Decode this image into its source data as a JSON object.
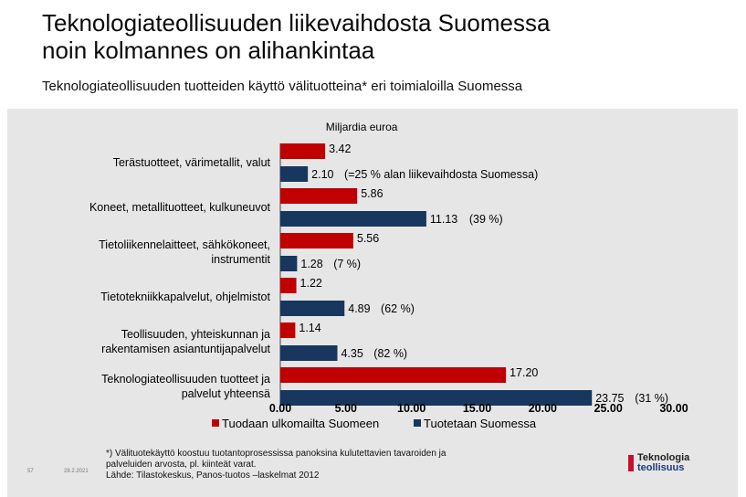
{
  "header": {
    "title_line1": "Teknologiateollisuuden liikevaihdosta Suomessa",
    "title_line2": "noin kolmannes on alihankintaa",
    "subtitle": "Teknologiateollisuuden tuotteiden käyttö välituotteina* eri toimialoilla Suomessa"
  },
  "chart_data": {
    "type": "bar",
    "orientation": "horizontal",
    "title": "Miljardia euroa",
    "categories": [
      [
        "Terästuotteet, värimetallit, valut"
      ],
      [
        "Koneet, metallituotteet, kulkuneuvot"
      ],
      [
        "Tietoliikennelaitteet, sähkökoneet,",
        "instrumentit"
      ],
      [
        "Tietotekniikkapalvelut, ohjelmistot"
      ],
      [
        "Teollisuuden, yhteiskunnan ja",
        "rakentamisen asiantuntijapalvelut"
      ],
      [
        "Teknologiateollisuuden tuotteet ja",
        "palvelut yhteensä"
      ]
    ],
    "series": [
      {
        "name": "Tuodaan ulkomailta Suomeen",
        "color": "#c00000",
        "values": [
          3.42,
          5.86,
          5.56,
          1.22,
          1.14,
          17.2
        ],
        "labels": [
          "3.42",
          "5.86",
          "5.56",
          "1.22",
          "1.14",
          "17.20"
        ]
      },
      {
        "name": "Tuotetaan Suomessa",
        "color": "#17375e",
        "values": [
          2.1,
          11.13,
          1.28,
          4.89,
          4.35,
          23.75
        ],
        "labels": [
          "2.10",
          "11.13",
          "1.28",
          "4.89",
          "4.35",
          "23.75"
        ],
        "annotations": [
          "(=25 % alan liikevaihdosta Suomessa)",
          "(39 %)",
          "(7 %)",
          "(62 %)",
          "(82 %)",
          "(31 %)"
        ]
      }
    ],
    "xlim": [
      0,
      30
    ],
    "xticks": [
      "0.00",
      "5.00",
      "10.00",
      "15.00",
      "20.00",
      "25.00",
      "30.00"
    ],
    "legend_position": "bottom"
  },
  "footnote": {
    "line1": "*) Välituotekäyttö koostuu tuotantoprosessissa panoksina kulutettavien tavaroiden ja",
    "line2": "palveluiden arvosta, pl. kiinteät varat.",
    "line3": "Lähde: Tilastokeskus, Panos-tuotos –laskelmat 2012"
  },
  "logo": {
    "line1": "Teknologia",
    "line2": "teollisuus"
  },
  "page": {
    "number": "57",
    "date": "28.2.2021"
  }
}
